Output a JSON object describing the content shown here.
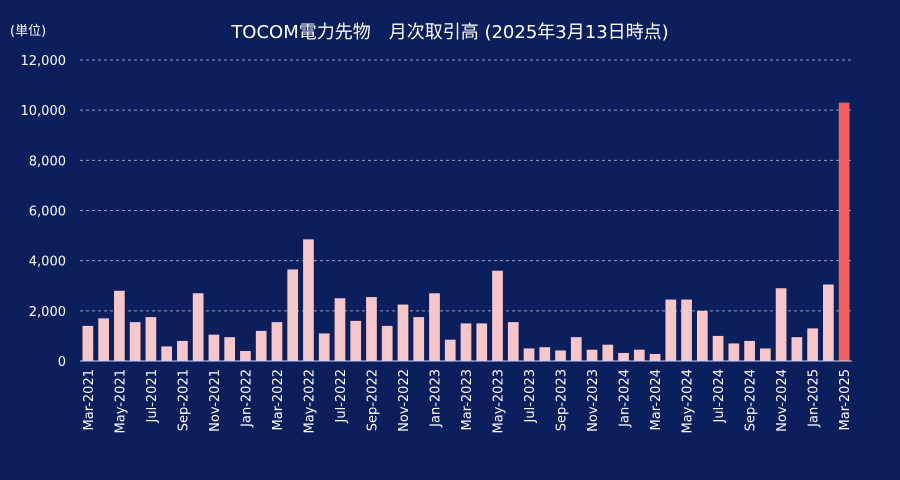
{
  "header": {
    "title": "TOCOM電力先物　月次取引高 (2025年3月13日時点)",
    "unit": "(単位)"
  },
  "colors": {
    "background": "#0b1f5c",
    "bar": "#f7c6c9",
    "highlight_bar": "#f26060",
    "text": "#ffffff",
    "grid": "#c9d3ee"
  },
  "chart_data": {
    "type": "bar",
    "title": "TOCOM電力先物　月次取引高 (2025年3月13日時点)",
    "ylabel": "(単位)",
    "xlabel": "",
    "ylim": [
      0,
      12000
    ],
    "yticks": [
      0,
      2000,
      4000,
      6000,
      8000,
      10000,
      12000
    ],
    "ytick_labels": [
      "0",
      "2,000",
      "4,000",
      "6,000",
      "8,000",
      "10,000",
      "12,000"
    ],
    "grid": true,
    "categories": [
      "Mar-2021",
      "Apr-2021",
      "May-2021",
      "Jun-2021",
      "Jul-2021",
      "Aug-2021",
      "Sep-2021",
      "Oct-2021",
      "Nov-2021",
      "Dec-2021",
      "Jan-2022",
      "Feb-2022",
      "Mar-2022",
      "Apr-2022",
      "May-2022",
      "Jun-2022",
      "Jul-2022",
      "Aug-2022",
      "Sep-2022",
      "Oct-2022",
      "Nov-2022",
      "Dec-2022",
      "Jan-2023",
      "Feb-2023",
      "Mar-2023",
      "Apr-2023",
      "May-2023",
      "Jun-2023",
      "Jul-2023",
      "Aug-2023",
      "Sep-2023",
      "Oct-2023",
      "Nov-2023",
      "Dec-2023",
      "Jan-2024",
      "Feb-2024",
      "Mar-2024",
      "Apr-2024",
      "May-2024",
      "Jun-2024",
      "Jul-2024",
      "Aug-2024",
      "Sep-2024",
      "Oct-2024",
      "Nov-2024",
      "Dec-2024",
      "Jan-2025",
      "Feb-2025",
      "Mar-2025"
    ],
    "visible_x_labels": [
      "Mar-2021",
      "May-2021",
      "Jul-2021",
      "Sep-2021",
      "Nov-2021",
      "Jan-2022",
      "Mar-2022",
      "May-2022",
      "Jul-2022",
      "Sep-2022",
      "Nov-2022",
      "Jan-2023",
      "Mar-2023",
      "May-2023",
      "Jul-2023",
      "Sep-2023",
      "Nov-2023",
      "Jan-2024",
      "Mar-2024",
      "May-2024",
      "Jul-2024",
      "Sep-2024",
      "Nov-2024",
      "Jan-2025",
      "Mar-2025"
    ],
    "values": [
      1400,
      1700,
      2800,
      1550,
      1750,
      580,
      800,
      2700,
      1050,
      950,
      400,
      1200,
      1550,
      3650,
      4850,
      1100,
      2500,
      1600,
      2550,
      1400,
      2250,
      1750,
      2700,
      850,
      1500,
      1500,
      3600,
      1550,
      500,
      550,
      420,
      950,
      450,
      650,
      320,
      450,
      280,
      2450,
      2450,
      2000,
      1000,
      700,
      800,
      500,
      2900,
      950,
      1300,
      3050,
      10300
    ],
    "highlight_index": 48
  }
}
